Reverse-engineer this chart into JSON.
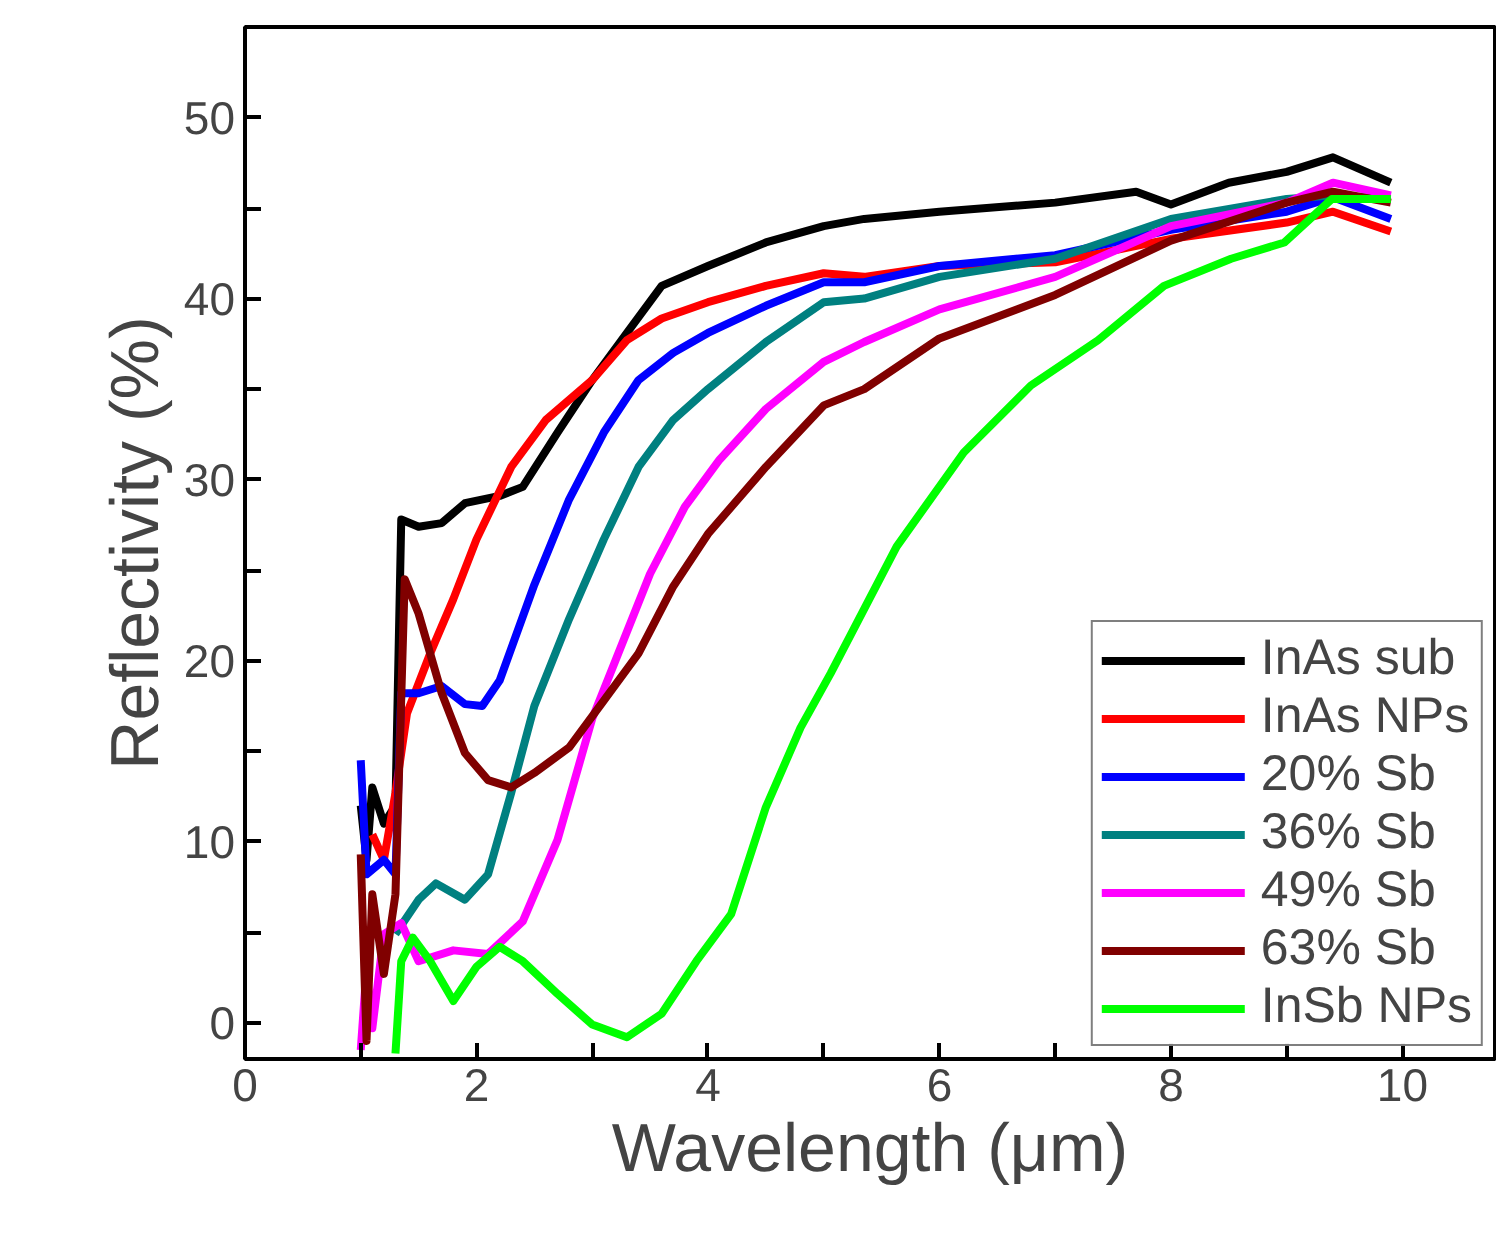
{
  "chart_data": {
    "type": "line",
    "xlabel": "Wavelength (μm)",
    "ylabel": "Reflectivity (%)",
    "xlim": [
      0,
      10.8
    ],
    "ylim": [
      -2,
      55
    ],
    "xticks": [
      0,
      {
        "value": 1,
        "label": null
      },
      2,
      {
        "value": 3,
        "label": null
      },
      4,
      {
        "value": 5,
        "label": null
      },
      6,
      {
        "value": 7,
        "label": null
      },
      8,
      {
        "value": 9,
        "label": null
      },
      10
    ],
    "yticks": [
      0,
      {
        "value": 5,
        "label": null
      },
      10,
      {
        "value": 15,
        "label": null
      },
      20,
      {
        "value": 25,
        "label": null
      },
      30,
      {
        "value": 35,
        "label": null
      },
      40,
      {
        "value": 45,
        "label": null
      },
      50
    ],
    "grid": false,
    "legend": "bottom right",
    "marker": "none",
    "line_style": "solid",
    "series": [
      {
        "name": "InAs sub",
        "color": "#000000",
        "x": [
          1.0,
          1.05,
          1.1,
          1.2,
          1.3,
          1.35,
          1.5,
          1.7,
          1.9,
          2.2,
          2.4,
          2.7,
          3.0,
          3.3,
          3.6,
          4.0,
          4.5,
          5.0,
          5.35,
          6.0,
          7.0,
          7.7,
          8.0,
          8.5,
          9.0,
          9.4,
          9.9
        ],
        "values": [
          12,
          9,
          13,
          11,
          12,
          27.8,
          27.4,
          27.6,
          28.7,
          29.1,
          29.6,
          32.6,
          35.5,
          38.1,
          40.7,
          41.8,
          43.1,
          44.0,
          44.4,
          44.8,
          45.3,
          45.9,
          45.2,
          46.4,
          47.0,
          47.8,
          46.4
        ]
      },
      {
        "name": "InAs NPs",
        "color": "#ff0000",
        "x": [
          1.1,
          1.2,
          1.3,
          1.4,
          1.6,
          1.8,
          2.0,
          2.3,
          2.6,
          3.0,
          3.3,
          3.6,
          4.0,
          4.5,
          5.0,
          5.35,
          6.0,
          7.0,
          8.0,
          9.0,
          9.4,
          9.9
        ],
        "values": [
          10.4,
          9,
          12.7,
          17.1,
          20.4,
          23.4,
          26.7,
          30.7,
          33.3,
          35.5,
          37.7,
          38.9,
          39.8,
          40.7,
          41.4,
          41.2,
          41.8,
          42.0,
          43.3,
          44.2,
          44.8,
          43.7
        ]
      },
      {
        "name": "20% Sb",
        "color": "#0000ff",
        "x": [
          1.0,
          1.05,
          1.2,
          1.3,
          1.35,
          1.5,
          1.7,
          1.9,
          2.05,
          2.2,
          2.5,
          2.8,
          3.1,
          3.4,
          3.7,
          4.0,
          4.5,
          5.0,
          5.35,
          6.0,
          7.0,
          8.0,
          9.0,
          9.4,
          9.9
        ],
        "values": [
          14.5,
          8.2,
          9,
          8.2,
          18.2,
          18.2,
          18.6,
          17.6,
          17.5,
          18.9,
          24.2,
          28.9,
          32.6,
          35.5,
          37.0,
          38.1,
          39.6,
          40.9,
          40.9,
          41.8,
          42.4,
          43.8,
          44.8,
          45.6,
          44.4
        ]
      },
      {
        "name": "36% Sb",
        "color": "#008080",
        "x": [
          1.3,
          1.5,
          1.65,
          1.9,
          2.1,
          2.3,
          2.5,
          2.8,
          3.1,
          3.4,
          3.7,
          4.0,
          4.5,
          5.0,
          5.35,
          6.0,
          7.0,
          8.0,
          9.0,
          9.4,
          9.9
        ],
        "values": [
          4.9,
          6.8,
          7.7,
          6.8,
          8.2,
          12.7,
          17.5,
          22.3,
          26.7,
          30.7,
          33.3,
          35.0,
          37.6,
          39.8,
          40.0,
          41.2,
          42.2,
          44.4,
          45.5,
          45.7,
          45.5
        ]
      },
      {
        "name": "49% Sb",
        "color": "#ff00ff",
        "x": [
          1.0,
          1.05,
          1.1,
          1.2,
          1.35,
          1.5,
          1.8,
          2.1,
          2.4,
          2.7,
          3.0,
          3.2,
          3.5,
          3.8,
          4.1,
          4.5,
          5.0,
          5.35,
          6.0,
          7.0,
          8.0,
          9.0,
          9.4,
          9.9
        ],
        "values": [
          -1.5,
          3,
          -0.3,
          4.9,
          5.5,
          3.4,
          4.0,
          3.8,
          5.6,
          10.1,
          16.8,
          20.0,
          24.8,
          28.5,
          31.1,
          33.9,
          36.5,
          37.6,
          39.4,
          41.2,
          44.0,
          45.3,
          46.4,
          45.7
        ]
      },
      {
        "name": "63% Sb",
        "color": "#800000",
        "x": [
          1.0,
          1.05,
          1.1,
          1.2,
          1.3,
          1.38,
          1.5,
          1.7,
          1.9,
          2.1,
          2.3,
          2.5,
          2.8,
          3.1,
          3.4,
          3.7,
          4.0,
          4.5,
          5.0,
          5.35,
          6.0,
          7.0,
          8.0,
          9.0,
          9.4,
          9.9
        ],
        "values": [
          9.3,
          -1,
          7.1,
          2.7,
          7.1,
          24.5,
          22.6,
          18.2,
          14.9,
          13.4,
          13.0,
          13.8,
          15.2,
          17.8,
          20.4,
          24.1,
          27.0,
          30.7,
          34.1,
          35.0,
          37.8,
          40.2,
          43.2,
          45.3,
          45.9,
          45.3
        ]
      },
      {
        "name": "InSb NPs",
        "color": "#00ff00",
        "x": [
          1.3,
          1.35,
          1.45,
          1.6,
          1.8,
          2.0,
          2.2,
          2.4,
          2.7,
          3.0,
          3.3,
          3.6,
          3.9,
          4.2,
          4.5,
          4.8,
          5.06,
          5.63,
          6.21,
          6.79,
          7.37,
          7.94,
          8.52,
          8.98,
          9.39,
          9.9
        ],
        "values": [
          -1.7,
          3.4,
          4.7,
          3.4,
          1.2,
          3.1,
          4.2,
          3.4,
          1.6,
          -0.1,
          -0.8,
          0.5,
          3.4,
          6.0,
          11.9,
          16.3,
          19.3,
          26.3,
          31.5,
          35.2,
          37.7,
          40.7,
          42.2,
          43.1,
          45.5,
          45.5
        ]
      }
    ]
  }
}
